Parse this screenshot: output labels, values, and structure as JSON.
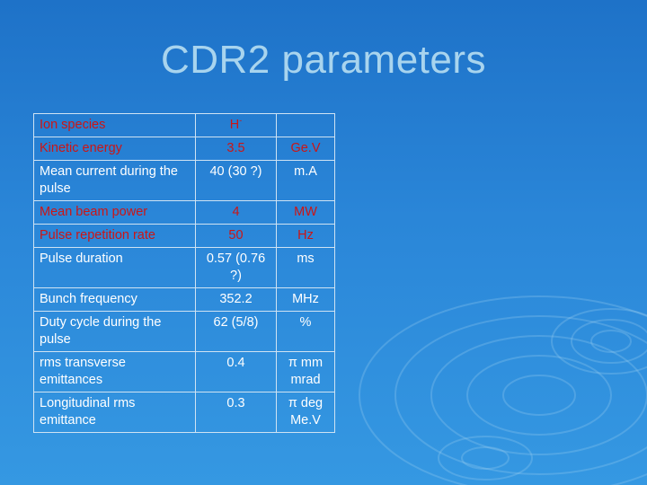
{
  "title": "CDR2 parameters",
  "table": {
    "rows": [
      {
        "param": "Ion species",
        "value": "H",
        "value_sup": "-",
        "unit": "",
        "highlight": true
      },
      {
        "param": "Kinetic energy",
        "value": "3.5",
        "unit": "Ge.V",
        "highlight": true
      },
      {
        "param": "Mean current during the pulse",
        "value": "40 (30 ?)",
        "unit": "m.A",
        "highlight": false
      },
      {
        "param": "Mean beam power",
        "value": "4",
        "unit": "MW",
        "highlight": true
      },
      {
        "param": "Pulse repetition rate",
        "value": "50",
        "unit": "Hz",
        "highlight": true
      },
      {
        "param": "Pulse duration",
        "value": "0.57 (0.76 ?)",
        "unit": "ms",
        "highlight": false
      },
      {
        "param": "Bunch frequency",
        "value": "352.2",
        "unit": "MHz",
        "highlight": false
      },
      {
        "param": "Duty cycle during the pulse",
        "value": "62 (5/8)",
        "unit": "%",
        "highlight": false
      },
      {
        "param": "rms transverse emittances",
        "value": "0.4",
        "unit": "π mm mrad",
        "highlight": false
      },
      {
        "param": "Longitudinal rms emittance",
        "value": "0.3",
        "unit": "π deg Me.V",
        "highlight": false
      }
    ]
  },
  "colors": {
    "background": "#2a86d8",
    "title": "#a8d4ee",
    "highlight_text": "#cc1515",
    "normal_text": "#ffffff"
  }
}
